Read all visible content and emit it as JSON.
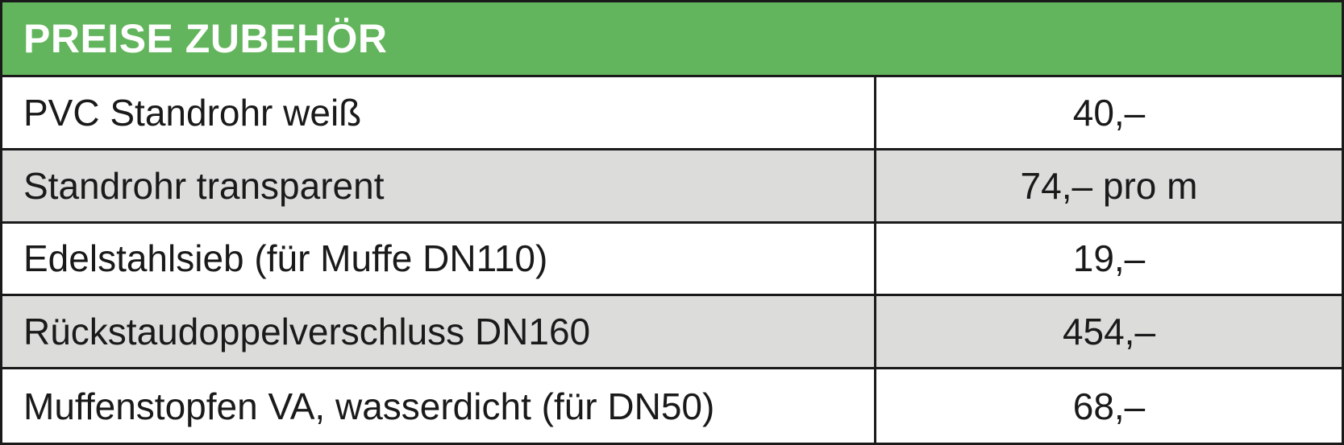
{
  "header": {
    "title": "PREISE ZUBEHÖR"
  },
  "table": {
    "rows": [
      [
        "PVC Standrohr weiß",
        "40,–"
      ],
      [
        "Standrohr transparent",
        "74,– pro m"
      ],
      [
        "Edelstahlsieb (für Muffe DN110)",
        "19,–"
      ],
      [
        "Rückstaudoppelverschluss DN160",
        "454,–"
      ],
      [
        "Muffenstopfen VA, wasserdicht (für DN50)",
        "68,–"
      ]
    ]
  }
}
